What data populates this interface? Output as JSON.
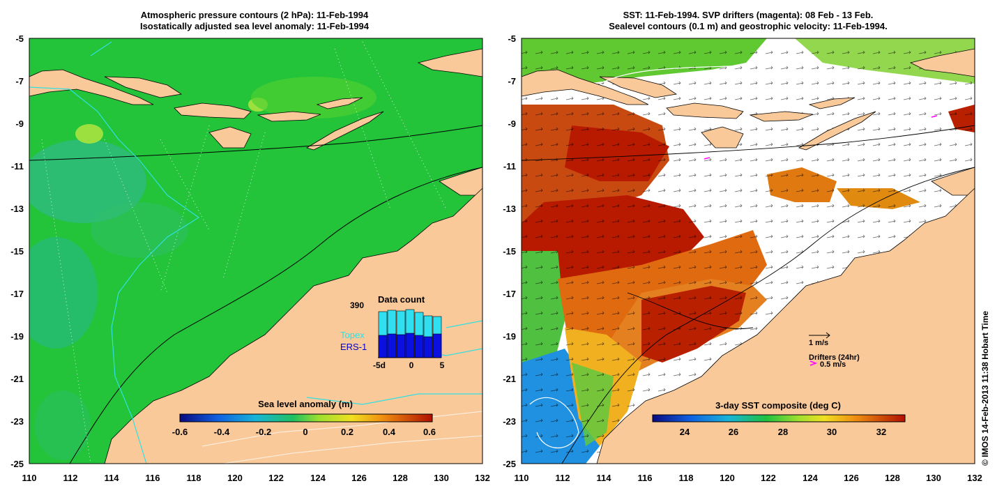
{
  "left_panel": {
    "title_line1": "Atmospheric pressure contours (2 hPa): 11-Feb-1994",
    "title_line2": "Isostatically adjusted sea level anomaly: 11-Feb-1994",
    "colorbar": {
      "title": "Sea level anomaly (m)",
      "ticks": [
        "-0.6",
        "-0.4",
        "-0.2",
        "0",
        "0.2",
        "0.4",
        "0.6"
      ]
    },
    "inset": {
      "title": "Data count",
      "ymax": "390",
      "series_topex": "Topex",
      "series_ers": "ERS-1",
      "xticks": [
        "-5d",
        "0",
        "5"
      ],
      "bars_total": [
        330,
        340,
        335,
        345,
        325,
        300,
        295
      ],
      "bars_ers": [
        160,
        170,
        165,
        175,
        160,
        150,
        170
      ]
    }
  },
  "right_panel": {
    "title_line1": "SST: 11-Feb-1994. SVP drifters (magenta): 08 Feb - 13 Feb.",
    "title_line2": "Sealevel contours (0.1 m) and geostrophic velocity: 11-Feb-1994.",
    "colorbar": {
      "title": "3-day SST composite (deg C)",
      "ticks": [
        "24",
        "26",
        "28",
        "30",
        "32"
      ]
    },
    "legend_velocity": "1 m/s",
    "legend_drifters": "Drifters (24hr)",
    "legend_drifter_speed": "0.5 m/s"
  },
  "axes": {
    "x_ticks": [
      "110",
      "112",
      "114",
      "116",
      "118",
      "120",
      "122",
      "124",
      "126",
      "128",
      "130",
      "132"
    ],
    "y_ticks": [
      "-5",
      "-7",
      "-9",
      "-11",
      "-13",
      "-15",
      "-17",
      "-19",
      "-21",
      "-23",
      "-25"
    ],
    "lon_range": [
      110,
      132
    ],
    "lat_range": [
      -25,
      -5
    ]
  },
  "copyright": "© IMOS 14-Feb-2013 11:38 Hobart Time",
  "colors": {
    "land": "#fac99a",
    "ocean_green": "#22c33a",
    "sst_hot": "#b01800",
    "sst_warm": "#e06a10",
    "drifter": "#ff00ff"
  }
}
